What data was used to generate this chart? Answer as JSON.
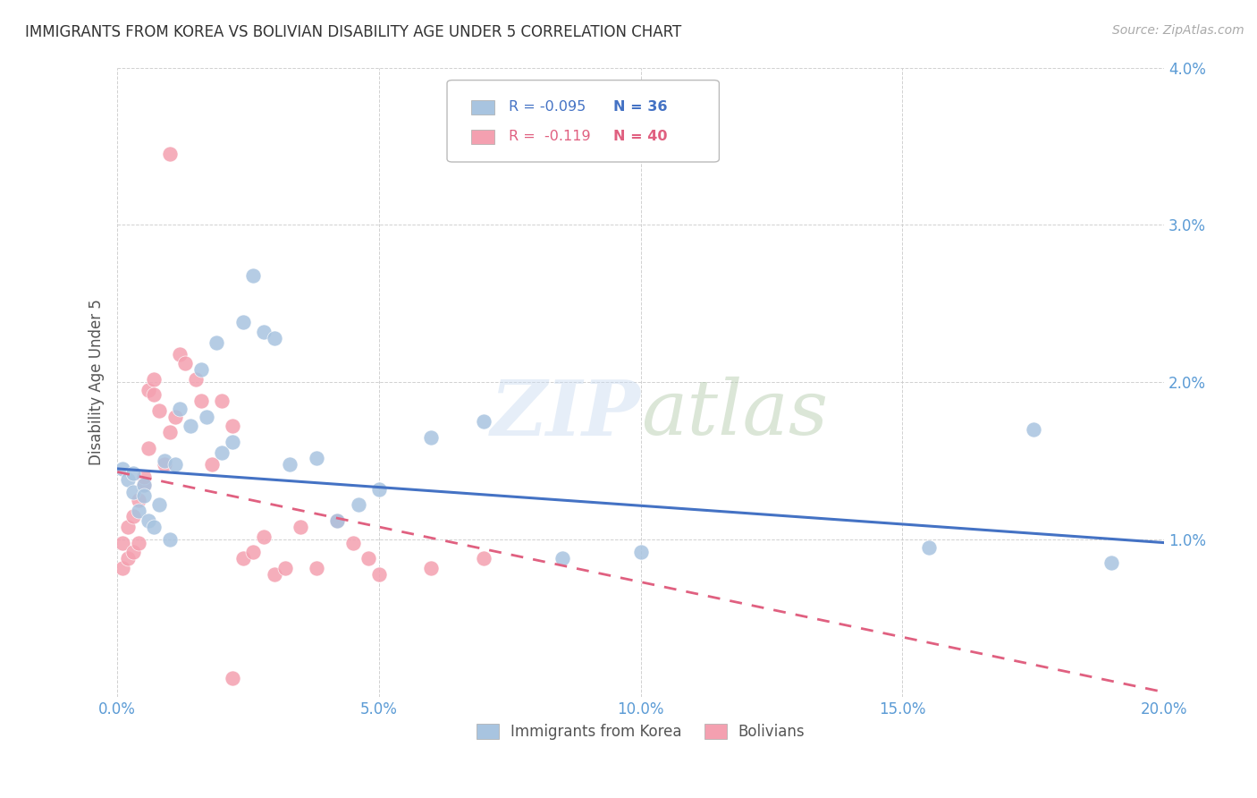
{
  "title": "IMMIGRANTS FROM KOREA VS BOLIVIAN DISABILITY AGE UNDER 5 CORRELATION CHART",
  "source": "Source: ZipAtlas.com",
  "ylabel": "Disability Age Under 5",
  "xlim": [
    0.0,
    0.2
  ],
  "ylim": [
    0.0,
    0.04
  ],
  "x_ticks": [
    0.0,
    0.05,
    0.1,
    0.15,
    0.2
  ],
  "x_tick_labels": [
    "0.0%",
    "5.0%",
    "10.0%",
    "15.0%",
    "20.0%"
  ],
  "y_ticks": [
    0.0,
    0.01,
    0.02,
    0.03,
    0.04
  ],
  "y_tick_labels": [
    "",
    "1.0%",
    "2.0%",
    "3.0%",
    "4.0%"
  ],
  "korea_R": -0.095,
  "korea_N": 36,
  "bolivia_R": -0.119,
  "bolivia_N": 40,
  "korea_color": "#a8c4e0",
  "bolivia_color": "#f4a0b0",
  "korea_line_color": "#4472c4",
  "bolivia_line_color": "#e06080",
  "legend_label_korea": "Immigrants from Korea",
  "legend_label_bolivia": "Bolivians",
  "tick_color": "#5b9bd5",
  "korea_x": [
    0.001,
    0.002,
    0.003,
    0.003,
    0.004,
    0.005,
    0.005,
    0.006,
    0.007,
    0.008,
    0.009,
    0.01,
    0.011,
    0.012,
    0.014,
    0.016,
    0.017,
    0.019,
    0.02,
    0.022,
    0.024,
    0.026,
    0.028,
    0.03,
    0.033,
    0.038,
    0.042,
    0.046,
    0.05,
    0.06,
    0.07,
    0.085,
    0.1,
    0.155,
    0.175,
    0.19
  ],
  "korea_y": [
    0.0145,
    0.0138,
    0.0142,
    0.013,
    0.0118,
    0.0135,
    0.0128,
    0.0112,
    0.0108,
    0.0122,
    0.015,
    0.01,
    0.0148,
    0.0183,
    0.0172,
    0.0208,
    0.0178,
    0.0225,
    0.0155,
    0.0162,
    0.0238,
    0.0268,
    0.0232,
    0.0228,
    0.0148,
    0.0152,
    0.0112,
    0.0122,
    0.0132,
    0.0165,
    0.0175,
    0.0088,
    0.0092,
    0.0095,
    0.017,
    0.0085
  ],
  "bolivia_x": [
    0.001,
    0.001,
    0.002,
    0.002,
    0.003,
    0.003,
    0.004,
    0.004,
    0.005,
    0.005,
    0.006,
    0.006,
    0.007,
    0.007,
    0.008,
    0.009,
    0.01,
    0.011,
    0.012,
    0.013,
    0.015,
    0.016,
    0.018,
    0.02,
    0.022,
    0.024,
    0.026,
    0.028,
    0.03,
    0.032,
    0.035,
    0.038,
    0.042,
    0.045,
    0.048,
    0.05,
    0.06,
    0.07,
    0.01,
    0.022
  ],
  "bolivia_y": [
    0.0098,
    0.0082,
    0.0108,
    0.0088,
    0.0092,
    0.0115,
    0.0098,
    0.0125,
    0.0135,
    0.014,
    0.0158,
    0.0195,
    0.0202,
    0.0192,
    0.0182,
    0.0148,
    0.0168,
    0.0178,
    0.0218,
    0.0212,
    0.0202,
    0.0188,
    0.0148,
    0.0188,
    0.0172,
    0.0088,
    0.0092,
    0.0102,
    0.0078,
    0.0082,
    0.0108,
    0.0082,
    0.0112,
    0.0098,
    0.0088,
    0.0078,
    0.0082,
    0.0088,
    0.0345,
    0.0012
  ],
  "korea_line_x": [
    0.0,
    0.2
  ],
  "korea_line_y": [
    0.0145,
    0.0098
  ],
  "bolivia_line_x": [
    0.0,
    0.2
  ],
  "bolivia_line_y": [
    0.0143,
    0.0003
  ]
}
